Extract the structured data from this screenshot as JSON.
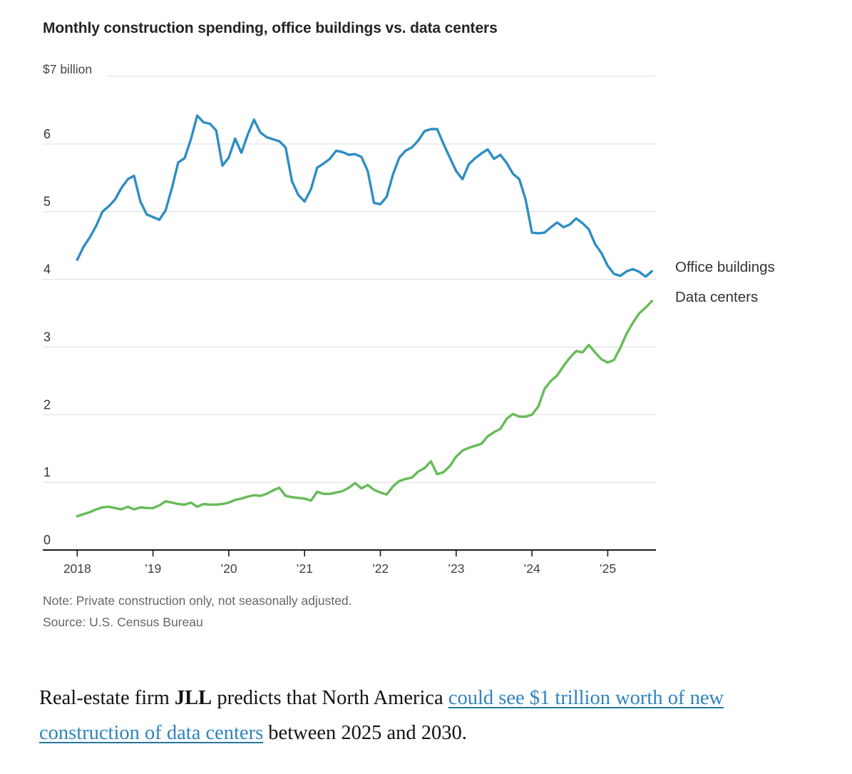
{
  "chart": {
    "title": "Monthly construction spending, office buildings vs. data centers",
    "y_axis_unit": "$7 billion",
    "note": "Note: Private construction only, not seasonally adjusted.",
    "source": "Source: U.S. Census Bureau",
    "colors": {
      "office_line": "#2f8dc3",
      "datacenter_line": "#67bb58",
      "grid": "#e4e4e4",
      "axis": "#1a1a1a",
      "tick_label": "#3f3f3f"
    }
  },
  "chart_data": {
    "type": "line",
    "title": "Monthly construction spending, office buildings vs. data centers",
    "x_frequency": "monthly",
    "x_start": "2018-01",
    "x_end": "2025-08",
    "x_tick_labels": [
      "2018",
      "’19",
      "’20",
      "’21",
      "’22",
      "’23",
      "’24",
      "’25"
    ],
    "y_tick_labels": [
      "6",
      "5",
      "4",
      "3",
      "2",
      "1",
      "0"
    ],
    "ylabel": "$7 billion",
    "ylim": [
      0,
      7
    ],
    "grid": "horizontal",
    "legend_position": "right of line ends",
    "series": [
      {
        "name": "Office buildings",
        "color": "#2f8dc3",
        "values": [
          4.29,
          4.48,
          4.62,
          4.79,
          5.0,
          5.08,
          5.18,
          5.35,
          5.48,
          5.53,
          5.15,
          4.96,
          4.92,
          4.88,
          5.02,
          5.35,
          5.73,
          5.79,
          6.07,
          6.42,
          6.32,
          6.3,
          6.2,
          5.68,
          5.8,
          6.08,
          5.87,
          6.14,
          6.36,
          6.17,
          6.1,
          6.07,
          6.04,
          5.95,
          5.45,
          5.25,
          5.15,
          5.33,
          5.65,
          5.71,
          5.78,
          5.9,
          5.88,
          5.84,
          5.85,
          5.81,
          5.6,
          5.13,
          5.11,
          5.22,
          5.55,
          5.8,
          5.9,
          5.95,
          6.05,
          6.19,
          6.22,
          6.22,
          6.0,
          5.8,
          5.6,
          5.48,
          5.7,
          5.79,
          5.86,
          5.92,
          5.78,
          5.84,
          5.72,
          5.56,
          5.48,
          5.18,
          4.69,
          4.68,
          4.69,
          4.77,
          4.84,
          4.77,
          4.81,
          4.9,
          4.83,
          4.74,
          4.52,
          4.39,
          4.2,
          4.08,
          4.05,
          4.12,
          4.15,
          4.11,
          4.04,
          4.12
        ]
      },
      {
        "name": "Data centers",
        "color": "#67bb58",
        "values": [
          0.5,
          0.53,
          0.56,
          0.6,
          0.63,
          0.64,
          0.62,
          0.6,
          0.64,
          0.6,
          0.63,
          0.62,
          0.62,
          0.66,
          0.72,
          0.7,
          0.68,
          0.67,
          0.7,
          0.64,
          0.68,
          0.67,
          0.67,
          0.68,
          0.7,
          0.74,
          0.76,
          0.79,
          0.81,
          0.8,
          0.83,
          0.88,
          0.92,
          0.8,
          0.78,
          0.77,
          0.76,
          0.73,
          0.86,
          0.83,
          0.83,
          0.85,
          0.87,
          0.92,
          0.99,
          0.91,
          0.96,
          0.89,
          0.85,
          0.82,
          0.94,
          1.02,
          1.05,
          1.07,
          1.16,
          1.21,
          1.31,
          1.12,
          1.15,
          1.24,
          1.38,
          1.47,
          1.51,
          1.54,
          1.57,
          1.68,
          1.74,
          1.79,
          1.94,
          2.01,
          1.97,
          1.97,
          2.0,
          2.12,
          2.38,
          2.5,
          2.58,
          2.72,
          2.84,
          2.94,
          2.92,
          3.03,
          2.92,
          2.82,
          2.77,
          2.81,
          2.99,
          3.2,
          3.36,
          3.5,
          3.58,
          3.68
        ]
      }
    ]
  },
  "legend": {
    "office": "Office buildings",
    "data_centers": "Data centers"
  },
  "paragraph": {
    "text_1": "Real-estate firm ",
    "bold": "JLL",
    "text_2": " predicts that North America ",
    "link": "could see $1 trillion worth of new construction of data centers",
    "text_3": " between 2025 and 2030."
  }
}
